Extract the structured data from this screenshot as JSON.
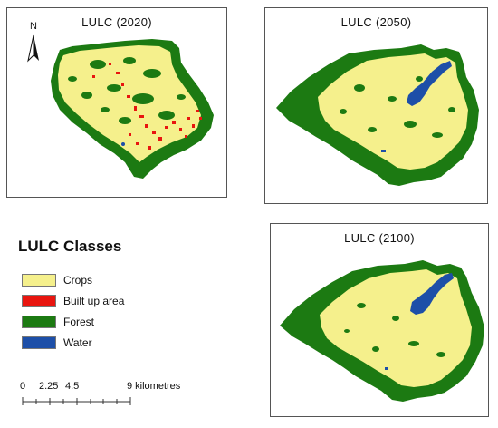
{
  "maps": [
    {
      "id": "2020",
      "title": "LULC (2020)"
    },
    {
      "id": "2050",
      "title": "LULC (2050)"
    },
    {
      "id": "2100",
      "title": "LULC (2100)"
    }
  ],
  "north_arrow": {
    "label": "N"
  },
  "legend": {
    "title": "LULC Classes",
    "items": [
      {
        "label": "Crops",
        "color": "#f5f08c"
      },
      {
        "label": "Built up area",
        "color": "#e8150f"
      },
      {
        "label": "Forest",
        "color": "#1c7a12"
      },
      {
        "label": "Water",
        "color": "#1d4fa8"
      }
    ]
  },
  "scale_bar": {
    "labels": [
      "0",
      "2.25",
      "4.5",
      "9 kilometres"
    ]
  }
}
